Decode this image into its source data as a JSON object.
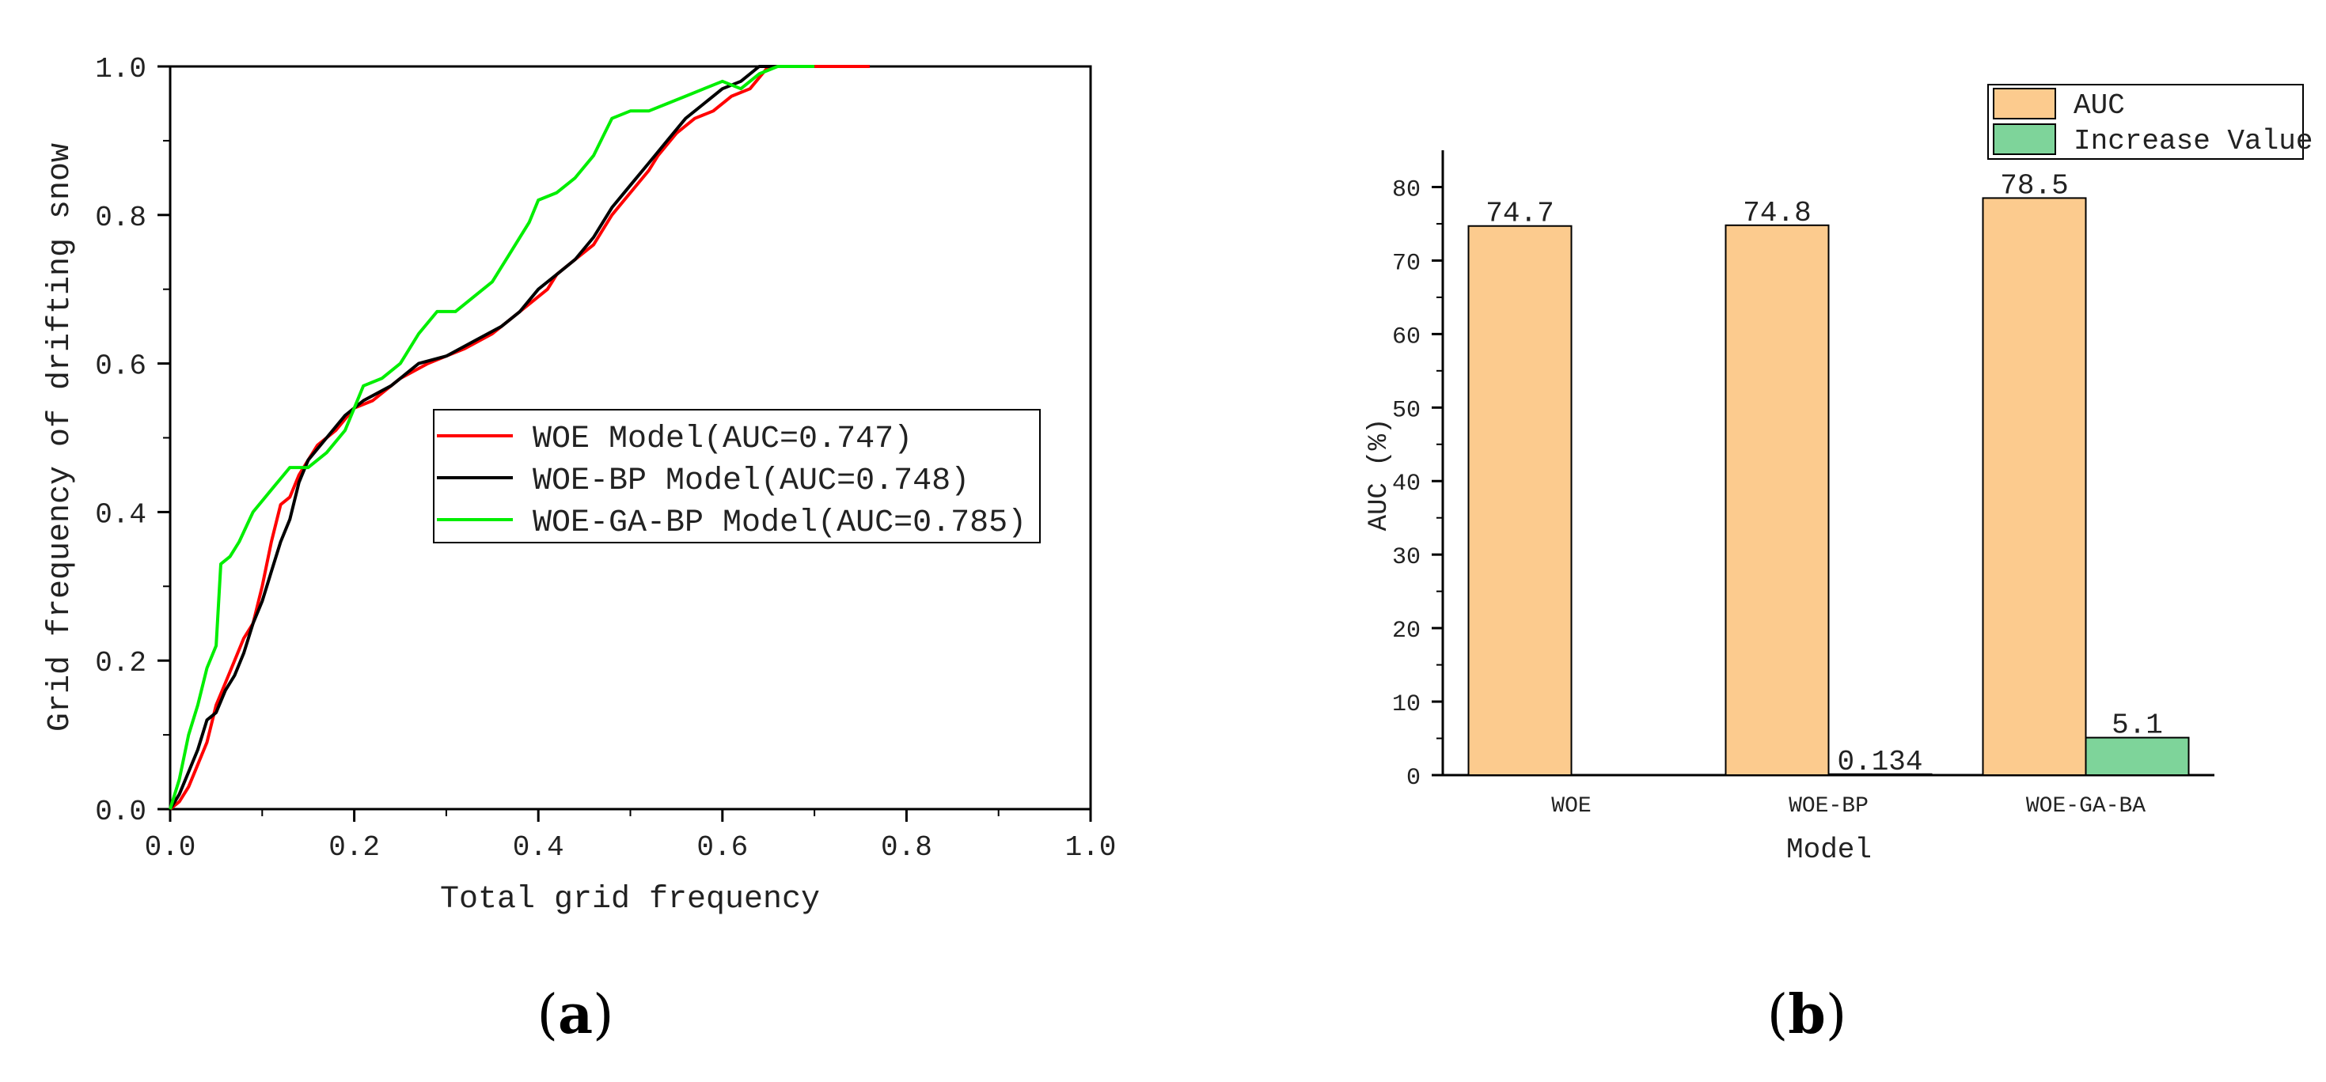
{
  "panels": {
    "a": {
      "caption_letter": "a"
    },
    "b": {
      "caption_letter": "b"
    }
  },
  "chart_data": [
    {
      "type": "line",
      "title": "",
      "xlabel": "Total grid frequency",
      "ylabel": "Grid frequency of drifting snow",
      "xlim": [
        0,
        1
      ],
      "ylim": [
        0,
        1
      ],
      "xticks": [
        "0.0",
        "0.2",
        "0.4",
        "0.6",
        "0.8",
        "1.0"
      ],
      "yticks": [
        "0.0",
        "0.2",
        "0.4",
        "0.6",
        "0.8",
        "1.0"
      ],
      "legend_position": "center-right",
      "grid": false,
      "series": [
        {
          "name": "WOE Model(AUC=0.747)",
          "color": "#ff0000",
          "points": [
            [
              0,
              0
            ],
            [
              0.01,
              0.01
            ],
            [
              0.02,
              0.03
            ],
            [
              0.03,
              0.06
            ],
            [
              0.04,
              0.09
            ],
            [
              0.05,
              0.14
            ],
            [
              0.06,
              0.17
            ],
            [
              0.07,
              0.2
            ],
            [
              0.08,
              0.23
            ],
            [
              0.09,
              0.25
            ],
            [
              0.1,
              0.3
            ],
            [
              0.11,
              0.36
            ],
            [
              0.12,
              0.41
            ],
            [
              0.13,
              0.42
            ],
            [
              0.14,
              0.45
            ],
            [
              0.15,
              0.47
            ],
            [
              0.16,
              0.49
            ],
            [
              0.18,
              0.51
            ],
            [
              0.2,
              0.54
            ],
            [
              0.22,
              0.55
            ],
            [
              0.25,
              0.58
            ],
            [
              0.28,
              0.6
            ],
            [
              0.3,
              0.61
            ],
            [
              0.32,
              0.62
            ],
            [
              0.35,
              0.64
            ],
            [
              0.37,
              0.66
            ],
            [
              0.39,
              0.68
            ],
            [
              0.4,
              0.69
            ],
            [
              0.41,
              0.7
            ],
            [
              0.42,
              0.72
            ],
            [
              0.44,
              0.74
            ],
            [
              0.46,
              0.76
            ],
            [
              0.48,
              0.8
            ],
            [
              0.5,
              0.83
            ],
            [
              0.52,
              0.86
            ],
            [
              0.53,
              0.88
            ],
            [
              0.55,
              0.91
            ],
            [
              0.57,
              0.93
            ],
            [
              0.59,
              0.94
            ],
            [
              0.61,
              0.96
            ],
            [
              0.63,
              0.97
            ],
            [
              0.65,
              1.0
            ],
            [
              0.7,
              1.0
            ],
            [
              0.76,
              1.0
            ]
          ]
        },
        {
          "name": "WOE-BP Model(AUC=0.748)",
          "color": "#000000",
          "points": [
            [
              0,
              0
            ],
            [
              0.01,
              0.02
            ],
            [
              0.02,
              0.05
            ],
            [
              0.03,
              0.08
            ],
            [
              0.04,
              0.12
            ],
            [
              0.05,
              0.13
            ],
            [
              0.06,
              0.16
            ],
            [
              0.07,
              0.18
            ],
            [
              0.08,
              0.21
            ],
            [
              0.09,
              0.25
            ],
            [
              0.1,
              0.28
            ],
            [
              0.11,
              0.32
            ],
            [
              0.12,
              0.36
            ],
            [
              0.13,
              0.39
            ],
            [
              0.14,
              0.44
            ],
            [
              0.15,
              0.47
            ],
            [
              0.17,
              0.5
            ],
            [
              0.19,
              0.53
            ],
            [
              0.21,
              0.55
            ],
            [
              0.24,
              0.57
            ],
            [
              0.27,
              0.6
            ],
            [
              0.3,
              0.61
            ],
            [
              0.33,
              0.63
            ],
            [
              0.36,
              0.65
            ],
            [
              0.38,
              0.67
            ],
            [
              0.4,
              0.7
            ],
            [
              0.42,
              0.72
            ],
            [
              0.44,
              0.74
            ],
            [
              0.46,
              0.77
            ],
            [
              0.48,
              0.81
            ],
            [
              0.5,
              0.84
            ],
            [
              0.52,
              0.87
            ],
            [
              0.54,
              0.9
            ],
            [
              0.56,
              0.93
            ],
            [
              0.58,
              0.95
            ],
            [
              0.6,
              0.97
            ],
            [
              0.62,
              0.98
            ],
            [
              0.64,
              1.0
            ],
            [
              0.7,
              1.0
            ]
          ]
        },
        {
          "name": "WOE-GA-BP Model(AUC=0.785)",
          "color": "#00ee00",
          "points": [
            [
              0,
              0
            ],
            [
              0.01,
              0.04
            ],
            [
              0.02,
              0.1
            ],
            [
              0.03,
              0.14
            ],
            [
              0.04,
              0.19
            ],
            [
              0.05,
              0.22
            ],
            [
              0.055,
              0.33
            ],
            [
              0.065,
              0.34
            ],
            [
              0.075,
              0.36
            ],
            [
              0.09,
              0.4
            ],
            [
              0.11,
              0.43
            ],
            [
              0.13,
              0.46
            ],
            [
              0.15,
              0.46
            ],
            [
              0.17,
              0.48
            ],
            [
              0.19,
              0.51
            ],
            [
              0.21,
              0.57
            ],
            [
              0.23,
              0.58
            ],
            [
              0.25,
              0.6
            ],
            [
              0.27,
              0.64
            ],
            [
              0.29,
              0.67
            ],
            [
              0.31,
              0.67
            ],
            [
              0.33,
              0.69
            ],
            [
              0.35,
              0.71
            ],
            [
              0.37,
              0.75
            ],
            [
              0.39,
              0.79
            ],
            [
              0.4,
              0.82
            ],
            [
              0.42,
              0.83
            ],
            [
              0.44,
              0.85
            ],
            [
              0.46,
              0.88
            ],
            [
              0.48,
              0.93
            ],
            [
              0.5,
              0.94
            ],
            [
              0.52,
              0.94
            ],
            [
              0.54,
              0.95
            ],
            [
              0.56,
              0.96
            ],
            [
              0.58,
              0.97
            ],
            [
              0.6,
              0.98
            ],
            [
              0.62,
              0.97
            ],
            [
              0.64,
              0.99
            ],
            [
              0.66,
              1.0
            ],
            [
              0.7,
              1.0
            ]
          ]
        }
      ]
    },
    {
      "type": "bar",
      "title": "",
      "xlabel": "Model",
      "ylabel": "AUC (%)",
      "ylim": [
        0,
        85
      ],
      "yticks": [
        "0",
        "10",
        "20",
        "30",
        "40",
        "50",
        "60",
        "70",
        "80"
      ],
      "categories": [
        "WOE",
        "WOE-BP",
        "WOE-GA-BA"
      ],
      "legend_position": "top-right",
      "series": [
        {
          "name": "AUC",
          "color": "#fccb8e",
          "values": [
            74.7,
            74.8,
            78.5
          ],
          "labels": [
            "74.7",
            "74.8",
            "78.5"
          ]
        },
        {
          "name": "Increase Value",
          "color": "#7ed49a",
          "values": [
            0,
            0.134,
            5.1
          ],
          "labels": [
            "",
            "0.134",
            "5.1"
          ]
        }
      ]
    }
  ]
}
